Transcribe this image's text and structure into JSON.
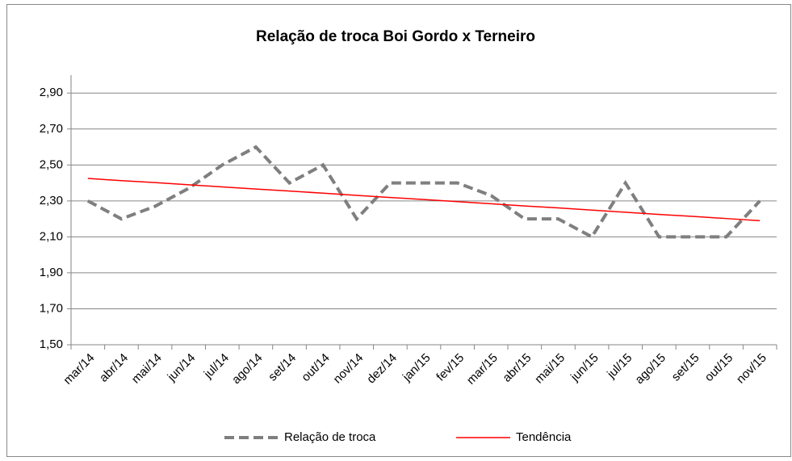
{
  "chart_data": {
    "type": "line",
    "title": "Relação de troca Boi Gordo x Terneiro",
    "categories": [
      "mar/14",
      "abr/14",
      "mai/14",
      "jun/14",
      "jul/14",
      "ago/14",
      "set/14",
      "out/14",
      "nov/14",
      "dez/14",
      "jan/15",
      "fev/15",
      "mar/15",
      "abr/15",
      "mai/15",
      "jun/15",
      "jul/15",
      "ago/15",
      "set/15",
      "out/15",
      "nov/15"
    ],
    "series": [
      {
        "name": "Relação de troca",
        "color": "#7f7f7f",
        "dashed": true,
        "values": [
          2.3,
          2.2,
          2.27,
          2.37,
          2.5,
          2.6,
          2.4,
          2.5,
          2.2,
          2.4,
          2.4,
          2.4,
          2.33,
          2.2,
          2.2,
          2.1,
          2.4,
          2.1,
          2.1,
          2.1,
          2.3
        ]
      },
      {
        "name": "Tendência",
        "color": "#ff0000",
        "dashed": false,
        "values": [
          2.425,
          2.413,
          2.402,
          2.39,
          2.378,
          2.366,
          2.355,
          2.343,
          2.331,
          2.319,
          2.308,
          2.296,
          2.284,
          2.272,
          2.261,
          2.249,
          2.237,
          2.225,
          2.214,
          2.202,
          2.19
        ]
      }
    ],
    "ylim": [
      1.5,
      3.0
    ],
    "yticks": [
      {
        "value": 1.5,
        "label": "1,50"
      },
      {
        "value": 1.7,
        "label": "1,70"
      },
      {
        "value": 1.9,
        "label": "1,90"
      },
      {
        "value": 2.1,
        "label": "2,10"
      },
      {
        "value": 2.3,
        "label": "2,30"
      },
      {
        "value": 2.5,
        "label": "2,50"
      },
      {
        "value": 2.7,
        "label": "2,70"
      },
      {
        "value": 2.9,
        "label": "2,90"
      }
    ],
    "grid": true,
    "legend": "bottom"
  }
}
